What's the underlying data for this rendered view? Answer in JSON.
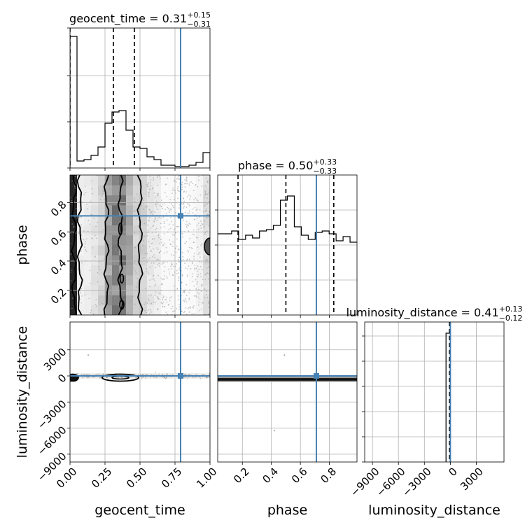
{
  "chart_data": {
    "type": "corner",
    "parameters": [
      "geocent_time",
      "phase",
      "luminosity_distance"
    ],
    "injection": {
      "geocent_time": 0.79,
      "phase": 0.71,
      "luminosity_distance": 0
    },
    "grid": true,
    "panels": [
      {
        "id": "geocent_time-hist",
        "type": "histogram",
        "title": {
          "main": "geocent_time = 0.31",
          "sup": "+0.15",
          "sub": "−0.31"
        },
        "xlim": [
          0,
          1
        ],
        "ylim": [
          0,
          1
        ],
        "quantiles": [
          0.0,
          0.31,
          0.46
        ],
        "injection": 0.79,
        "bins": [
          0,
          0.05,
          0.1,
          0.15,
          0.2,
          0.25,
          0.3,
          0.35,
          0.4,
          0.45,
          0.5,
          0.55,
          0.6,
          0.65,
          0.7,
          0.75,
          0.8,
          0.85,
          0.9,
          0.95,
          1.0
        ],
        "counts": [
          0.94,
          0.05,
          0.06,
          0.09,
          0.15,
          0.32,
          0.4,
          0.41,
          0.27,
          0.15,
          0.14,
          0.08,
          0.06,
          0.02,
          0.02,
          0.01,
          0.01,
          0.02,
          0.04,
          0.11
        ],
        "yticks": [
          0,
          0.33,
          0.66,
          1.0
        ]
      },
      {
        "id": "phase-vs-geocent_time",
        "type": "scatter-density",
        "x_param": "geocent_time",
        "y_param": "phase",
        "xlim": [
          0,
          1
        ],
        "ylim": [
          0.03,
          0.99
        ],
        "yticks": [
          0.2,
          0.4,
          0.6,
          0.8
        ],
        "ytick_labels": [
          "0.2",
          "0.4",
          "0.6",
          "0.8"
        ],
        "ylabel": "phase",
        "injection": [
          0.79,
          0.71
        ]
      },
      {
        "id": "phase-hist",
        "type": "histogram",
        "title": {
          "main": "phase = 0.50",
          "sup": "+0.33",
          "sub": "−0.33"
        },
        "xlim": [
          0.03,
          0.99
        ],
        "ylim": [
          0,
          1
        ],
        "quantiles": [
          0.17,
          0.5,
          0.83
        ],
        "injection": 0.71,
        "bins": [
          0.03,
          0.078,
          0.126,
          0.174,
          0.222,
          0.27,
          0.318,
          0.366,
          0.414,
          0.462,
          0.51,
          0.558,
          0.606,
          0.654,
          0.702,
          0.75,
          0.798,
          0.846,
          0.894,
          0.942,
          0.99
        ],
        "counts": [
          0.58,
          0.58,
          0.6,
          0.54,
          0.57,
          0.55,
          0.6,
          0.61,
          0.64,
          0.82,
          0.85,
          0.63,
          0.57,
          0.54,
          0.59,
          0.6,
          0.58,
          0.53,
          0.56,
          0.52
        ],
        "yticks": [
          0,
          0.25,
          0.5,
          0.75
        ]
      },
      {
        "id": "luminosity_distance-vs-geocent_time",
        "type": "scatter-density",
        "x_param": "geocent_time",
        "y_param": "luminosity_distance",
        "xlim": [
          0,
          1
        ],
        "ylim": [
          -9900,
          6200
        ],
        "xticks": [
          0,
          0.25,
          0.5,
          0.75,
          1.0
        ],
        "xtick_labels": [
          "0.00",
          "0.25",
          "0.50",
          "0.75",
          "1.00"
        ],
        "yticks": [
          -9000,
          -6000,
          -3000,
          0,
          3000
        ],
        "ytick_labels": [
          "−9000",
          "−6000",
          "−3000",
          "0",
          "3000"
        ],
        "xlabel": "geocent_time",
        "ylabel": "luminosity_distance",
        "injection": [
          0.79,
          0
        ]
      },
      {
        "id": "luminosity_distance-vs-phase",
        "type": "scatter-density",
        "x_param": "phase",
        "y_param": "luminosity_distance",
        "xlim": [
          0.03,
          0.99
        ],
        "ylim": [
          -9900,
          6200
        ],
        "xticks": [
          0.2,
          0.4,
          0.6,
          0.8
        ],
        "xtick_labels": [
          "0.2",
          "0.4",
          "0.6",
          "0.8"
        ],
        "xlabel": "phase",
        "injection": [
          0.71,
          0
        ]
      },
      {
        "id": "luminosity_distance-hist",
        "type": "histogram",
        "title": {
          "main": "luminosity_distance = 0.41",
          "sup": "+0.13",
          "sub": "−0.12"
        },
        "xlim": [
          -9900,
          6200
        ],
        "ylim": [
          0,
          1
        ],
        "quantiles": [
          0.29,
          0.41,
          0.54
        ],
        "injection": 0,
        "bar_range": [
          -500,
          0
        ],
        "bar_height": 0.92,
        "xticks": [
          -9000,
          -6000,
          -3000,
          0,
          3000
        ],
        "xtick_labels": [
          "−9000",
          "−6000",
          "−3000",
          "0",
          "3000"
        ],
        "xlabel": "luminosity_distance",
        "yticks": [
          0,
          0.18,
          0.36,
          0.54,
          0.72,
          0.9
        ]
      }
    ]
  },
  "colors": {
    "injection": "#4682b4",
    "line": "#000000",
    "grid": "#b0b0b0",
    "points": "#9a9a9a"
  }
}
